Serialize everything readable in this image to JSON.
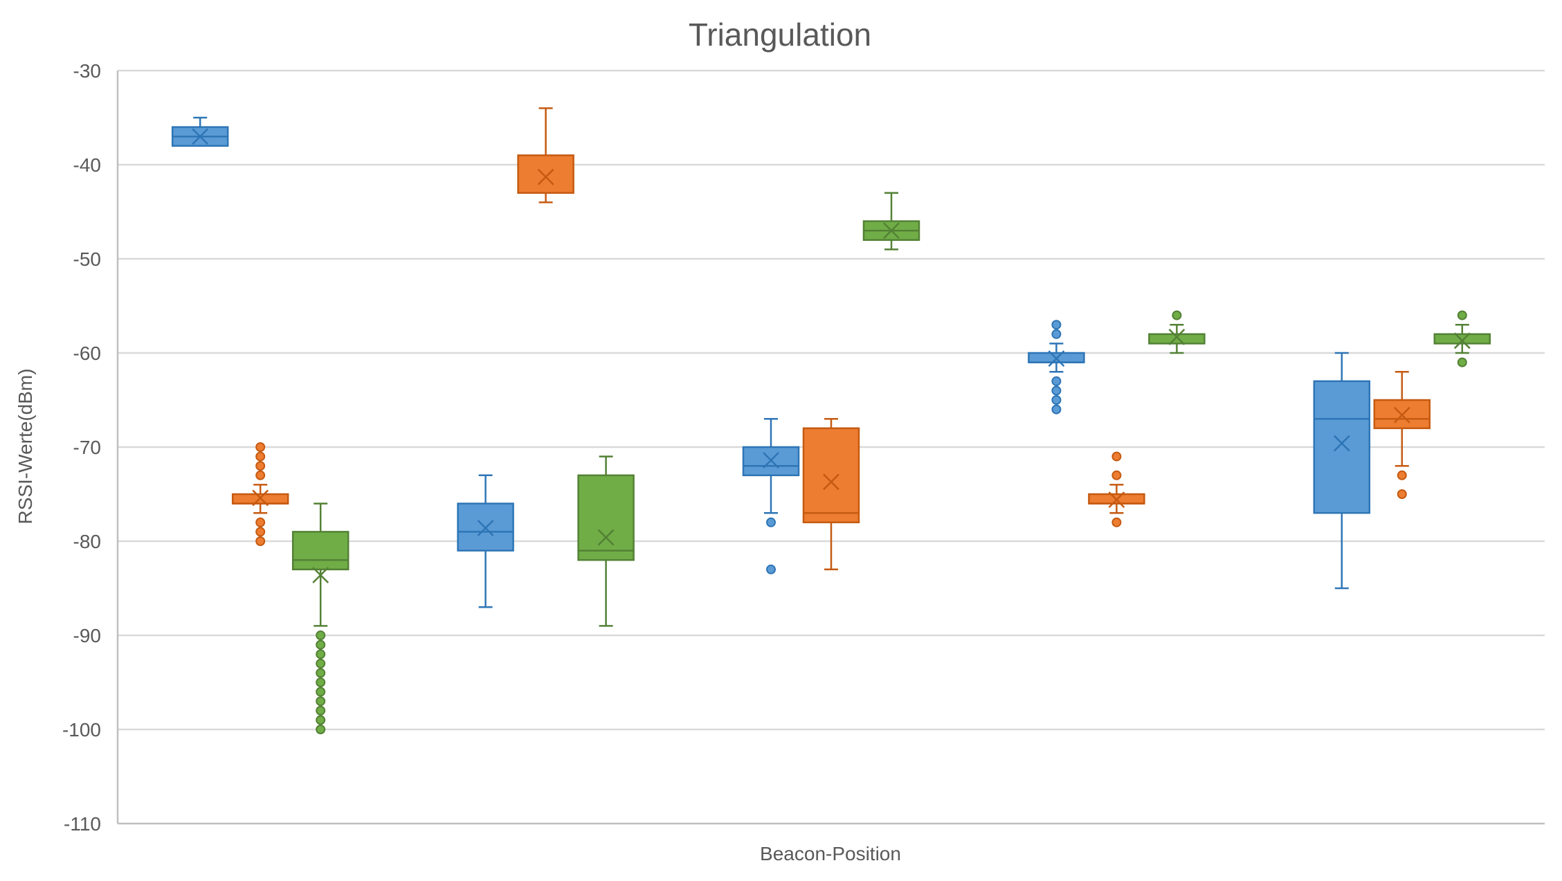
{
  "chart_data": {
    "type": "box",
    "title": "Triangulation",
    "xlabel": "Beacon-Position",
    "ylabel": "RSSI-Werte(dBm)",
    "ylim": [
      -110,
      -30
    ],
    "yticks": [
      -30,
      -40,
      -50,
      -60,
      -70,
      -80,
      -90,
      -100,
      -110
    ],
    "grid": true,
    "legend": "none",
    "colors": {
      "blue_fill": "#5b9bd5",
      "blue_line": "#2e75b6",
      "orange_fill": "#ed7d31",
      "orange_line": "#c55a11",
      "green_fill": "#70ad47",
      "green_line": "#538135"
    },
    "boxes": [
      {
        "color": "blue",
        "whisker_low": -38,
        "q1": -38,
        "median": -37,
        "q3": -36,
        "whisker_high": -35,
        "mean": -37,
        "outliers": []
      },
      {
        "color": "orange",
        "whisker_low": -77,
        "q1": -76,
        "median": -76,
        "q3": -75,
        "whisker_high": -74,
        "mean": -75.4,
        "outliers": [
          -70,
          -71,
          -72,
          -73,
          -78,
          -79,
          -80
        ]
      },
      {
        "color": "green",
        "whisker_low": -89,
        "q1": -83,
        "median": -82,
        "q3": -79,
        "whisker_high": -76,
        "mean": -83.6,
        "outliers": [
          -90,
          -91,
          -92,
          -93,
          -94,
          -95,
          -96,
          -97,
          -98,
          -99,
          -100
        ]
      },
      {
        "color": "blue",
        "whisker_low": -87,
        "q1": -81,
        "median": -79,
        "q3": -76,
        "whisker_high": -73,
        "mean": -78.6,
        "outliers": []
      },
      {
        "color": "orange",
        "whisker_low": -44,
        "q1": -43,
        "median": -43,
        "q3": -39,
        "whisker_high": -34,
        "mean": -41.3,
        "outliers": []
      },
      {
        "color": "green",
        "whisker_low": -89,
        "q1": -82,
        "median": -81,
        "q3": -73,
        "whisker_high": -71,
        "mean": -79.6,
        "outliers": []
      },
      {
        "color": "blue",
        "whisker_low": -77,
        "q1": -73,
        "median": -72,
        "q3": -70,
        "whisker_high": -67,
        "mean": -71.4,
        "outliers": [
          -78,
          -83
        ]
      },
      {
        "color": "orange",
        "whisker_low": -83,
        "q1": -78,
        "median": -77,
        "q3": -68,
        "whisker_high": -67,
        "mean": -73.7,
        "outliers": []
      },
      {
        "color": "green",
        "whisker_low": -49,
        "q1": -48,
        "median": -47,
        "q3": -46,
        "whisker_high": -43,
        "mean": -47,
        "outliers": []
      },
      {
        "color": "blue",
        "whisker_low": -62,
        "q1": -61,
        "median": -61,
        "q3": -60,
        "whisker_high": -59,
        "mean": -60.6,
        "outliers": [
          -57,
          -58,
          -63,
          -64,
          -65,
          -66
        ]
      },
      {
        "color": "orange",
        "whisker_low": -77,
        "q1": -76,
        "median": -76,
        "q3": -75,
        "whisker_high": -74,
        "mean": -75.6,
        "outliers": [
          -71,
          -73,
          -78
        ]
      },
      {
        "color": "green",
        "whisker_low": -60,
        "q1": -59,
        "median": -58,
        "q3": -58,
        "whisker_high": -57,
        "mean": -58.3,
        "outliers": [
          -56
        ]
      },
      {
        "color": "blue",
        "whisker_low": -85,
        "q1": -77,
        "median": -67,
        "q3": -63,
        "whisker_high": -60,
        "mean": -69.6,
        "outliers": []
      },
      {
        "color": "orange",
        "whisker_low": -72,
        "q1": -68,
        "median": -67,
        "q3": -65,
        "whisker_high": -62,
        "mean": -66.6,
        "outliers": [
          -73,
          -75
        ]
      },
      {
        "color": "green",
        "whisker_low": -60,
        "q1": -59,
        "median": -58,
        "q3": -58,
        "whisker_high": -57,
        "mean": -58.7,
        "outliers": [
          -56,
          -61
        ]
      }
    ]
  }
}
